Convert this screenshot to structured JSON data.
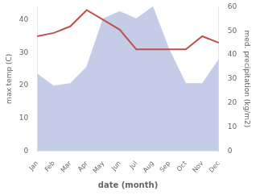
{
  "chart_data": {
    "type": "line",
    "xlabel": "date (month)",
    "ylabel": "max temp (C)",
    "y2label": "med. precipitation (kg/m2)",
    "categories": [
      "Jan",
      "Feb",
      "Mar",
      "Apr",
      "May",
      "Jun",
      "Jul",
      "Aug",
      "Sep",
      "Oct",
      "Nov",
      "Dec"
    ],
    "series": [
      {
        "type": "line",
        "color": "#c0504d",
        "values": [
          35,
          36,
          38,
          43,
          40,
          37,
          31,
          31,
          31,
          31,
          35,
          33
        ]
      },
      {
        "type": "area",
        "color": "#c5cce8",
        "axis": "y2",
        "values": [
          32,
          27,
          28,
          35,
          55,
          58,
          55,
          60,
          42,
          28,
          28,
          38
        ]
      }
    ],
    "ylim": [
      0,
      44
    ],
    "yticks": [
      0,
      10,
      20,
      30,
      40
    ],
    "y2lim": [
      0,
      60
    ],
    "y2ticks": [
      0,
      10,
      20,
      30,
      40,
      50,
      60
    ],
    "grid": false
  }
}
